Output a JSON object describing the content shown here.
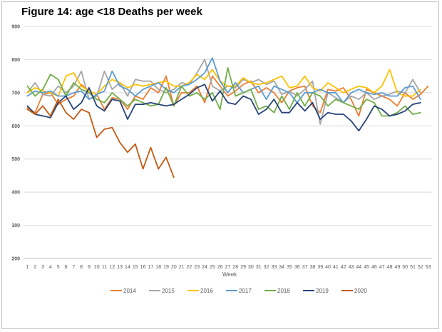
{
  "chart_data": {
    "type": "line",
    "title": "Figure 14: age <18 Deaths per week",
    "xlabel": "Week",
    "ylabel": "",
    "ylim": [
      200,
      900
    ],
    "yticks": [
      200,
      300,
      400,
      500,
      600,
      700,
      800,
      900
    ],
    "categories": [
      "1",
      "2",
      "3",
      "4",
      "5",
      "6",
      "7",
      "8",
      "9",
      "10",
      "11",
      "12",
      "13",
      "14",
      "15",
      "16",
      "17",
      "18",
      "19",
      "20",
      "21",
      "22",
      "23",
      "24",
      "25",
      "26",
      "27",
      "28",
      "29",
      "30",
      "31",
      "32",
      "33",
      "34",
      "35",
      "36",
      "37",
      "38",
      "39",
      "40",
      "41",
      "42",
      "43",
      "44",
      "45",
      "46",
      "47",
      "48",
      "49",
      "50",
      "51",
      "52",
      "53"
    ],
    "grid": true,
    "legend_position": "bottom",
    "series": [
      {
        "name": "2014",
        "color": "#ed7d31",
        "values": [
          655,
          640,
          695,
          700,
          665,
          680,
          690,
          725,
          705,
          695,
          650,
          685,
          680,
          650,
          690,
          680,
          715,
          700,
          750,
          660,
          700,
          700,
          720,
          670,
          750,
          720,
          690,
          705,
          725,
          735,
          700,
          715,
          700,
          670,
          705,
          715,
          720,
          660,
          640,
          710,
          705,
          715,
          680,
          630,
          710,
          700,
          690,
          680,
          660,
          700,
          680,
          695,
          720
        ]
      },
      {
        "name": "2015",
        "color": "#a5a5a5",
        "values": [
          700,
          730,
          695,
          690,
          720,
          700,
          720,
          765,
          680,
          690,
          765,
          710,
          730,
          690,
          740,
          735,
          735,
          710,
          700,
          710,
          730,
          725,
          760,
          800,
          720,
          705,
          720,
          715,
          740,
          730,
          740,
          725,
          735,
          695,
          705,
          690,
          710,
          735,
          605,
          700,
          685,
          670,
          690,
          680,
          700,
          680,
          690,
          695,
          705,
          700,
          740,
          700,
          null
        ]
      },
      {
        "name": "2016",
        "color": "#ffc000",
        "values": [
          700,
          715,
          705,
          700,
          690,
          750,
          760,
          720,
          705,
          695,
          720,
          740,
          730,
          715,
          725,
          720,
          725,
          730,
          735,
          720,
          720,
          730,
          755,
          740,
          770,
          735,
          720,
          720,
          745,
          730,
          725,
          730,
          740,
          750,
          715,
          720,
          750,
          715,
          705,
          730,
          715,
          700,
          710,
          720,
          715,
          700,
          720,
          770,
          700,
          690,
          690,
          710,
          null
        ]
      },
      {
        "name": "2017",
        "color": "#5b9bd5",
        "values": [
          690,
          705,
          700,
          705,
          690,
          690,
          700,
          705,
          680,
          695,
          705,
          765,
          720,
          710,
          690,
          710,
          720,
          730,
          710,
          700,
          720,
          725,
          740,
          760,
          805,
          735,
          700,
          730,
          700,
          710,
          720,
          680,
          720,
          710,
          700,
          670,
          700,
          700,
          710,
          700,
          700,
          670,
          700,
          710,
          700,
          695,
          700,
          690,
          690,
          715,
          720,
          680,
          null
        ]
      },
      {
        "name": "2018",
        "color": "#70ad47",
        "values": [
          720,
          690,
          710,
          755,
          740,
          690,
          730,
          710,
          700,
          680,
          670,
          700,
          680,
          660,
          680,
          670,
          660,
          665,
          715,
          660,
          720,
          690,
          700,
          680,
          700,
          650,
          775,
          690,
          700,
          710,
          650,
          660,
          640,
          690,
          650,
          700,
          660,
          700,
          690,
          660,
          680,
          670,
          660,
          650,
          680,
          670,
          630,
          630,
          640,
          660,
          635,
          640,
          null
        ]
      },
      {
        "name": "2019",
        "color": "#264478",
        "values": [
          660,
          635,
          630,
          625,
          670,
          690,
          650,
          670,
          715,
          660,
          645,
          680,
          675,
          620,
          665,
          665,
          670,
          665,
          660,
          665,
          680,
          695,
          715,
          725,
          675,
          705,
          670,
          665,
          690,
          680,
          635,
          650,
          680,
          640,
          640,
          670,
          645,
          670,
          620,
          640,
          635,
          635,
          615,
          585,
          620,
          660,
          650,
          630,
          635,
          645,
          665,
          670,
          null
        ]
      },
      {
        "name": "2020",
        "color": "#c55a11",
        "values": [
          650,
          635,
          660,
          630,
          680,
          640,
          620,
          650,
          640,
          565,
          590,
          595,
          550,
          520,
          545,
          470,
          535,
          470,
          505,
          445,
          null,
          null,
          null,
          null,
          null,
          null,
          null,
          null,
          null,
          null,
          null,
          null,
          null,
          null,
          null,
          null,
          null,
          null,
          null,
          null,
          null,
          null,
          null,
          null,
          null,
          null,
          null,
          null,
          null,
          null,
          null,
          null,
          null
        ]
      }
    ]
  }
}
